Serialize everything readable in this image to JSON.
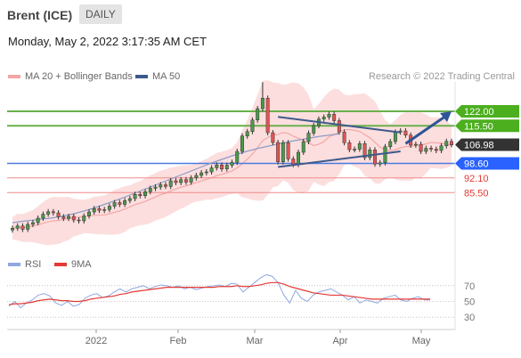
{
  "header": {
    "title": "Brent (ICE)",
    "period": "DAILY"
  },
  "datetime": "Monday, May 2, 2022 3:17:35 AM CET",
  "legend": [
    {
      "label": "MA 20 + Bollinger Bands",
      "color": "#f4a6a6"
    },
    {
      "label": "MA 50",
      "color": "#3d5a8c"
    }
  ],
  "copyright": "Research © 2022 Trading Central",
  "rsi_legend": [
    {
      "label": "RSI",
      "color": "#8fa8e0"
    },
    {
      "label": "9MA",
      "color": "#e53935"
    }
  ],
  "colors": {
    "up": "#4a9a4a",
    "down": "#e05555",
    "neutral_candle": "#222222",
    "resistance": "#6ab04c",
    "support": "#4b7be0",
    "red_level": "#f08a8a",
    "price_tag": "#333333"
  },
  "chart_data": [
    {
      "type": "candlestick",
      "title": "Brent (ICE)",
      "x_ticks": [
        "2022",
        "Feb",
        "Mar",
        "Apr",
        "May"
      ],
      "levels": [
        {
          "value": 122.0,
          "label": "122.00",
          "style": "resistance"
        },
        {
          "value": 115.5,
          "label": "115.50",
          "style": "resistance"
        },
        {
          "value": 106.98,
          "label": "106.98",
          "style": "last_price"
        },
        {
          "value": 98.6,
          "label": "98.60",
          "style": "support"
        },
        {
          "value": 92.1,
          "label": "92.10",
          "style": "minor"
        },
        {
          "value": 85.5,
          "label": "85.50",
          "style": "minor"
        }
      ],
      "y_range": [
        60,
        132
      ],
      "close_series": [
        69.5,
        70.5,
        69.0,
        71.2,
        72.0,
        74.0,
        75.8,
        76.9,
        76.4,
        74.6,
        73.9,
        74.8,
        73.2,
        72.8,
        75.0,
        76.8,
        78.3,
        77.5,
        77.9,
        79.4,
        81.0,
        80.2,
        81.9,
        82.8,
        84.7,
        84.1,
        85.9,
        87.4,
        88.0,
        89.0,
        88.3,
        90.8,
        90.0,
        91.3,
        90.2,
        92.1,
        93.2,
        94.4,
        94.8,
        96.6,
        97.9,
        96.1,
        97.8,
        99.1,
        104.0,
        110.9,
        112.9,
        118.1,
        123.2,
        127.9,
        112.4,
        108.0,
        99.3,
        107.9,
        100.6,
        98.1,
        103.6,
        108.4,
        112.2,
        115.6,
        118.5,
        119.4,
        120.7,
        117.8,
        112.7,
        107.9,
        104.8,
        105.0,
        107.5,
        101.2,
        104.7,
        98.3,
        98.9,
        106.1,
        108.4,
        112.7,
        113.2,
        111.3,
        106.8,
        107.2,
        104.0,
        105.4,
        105.0,
        104.4,
        106.5,
        108.5,
        106.98
      ],
      "ma50": [
        72.0,
        72.3,
        72.6,
        72.9,
        73.1,
        73.4,
        73.7,
        73.9,
        74.2,
        74.6,
        75.0,
        75.5,
        76.0,
        76.6,
        77.2,
        77.9,
        78.6,
        79.4,
        80.2,
        81.0,
        81.8,
        82.6,
        83.5,
        84.4,
        85.3,
        86.2,
        87.1,
        88.0,
        88.9,
        89.8,
        90.7,
        91.6,
        92.5,
        93.4,
        94.3,
        95.2,
        96.1,
        97.0,
        97.9,
        98.8,
        99.6,
        100.4,
        101.2,
        102.0,
        102.7,
        103.4,
        104.1,
        104.7,
        105.3,
        105.8,
        106.3,
        106.8,
        107.3,
        107.8,
        108.3,
        108.7,
        109.1,
        109.5,
        109.9,
        110.3,
        110.7,
        111.0,
        111.3,
        111.6,
        111.9
      ],
      "ma50_start_index": 0,
      "trendlines": [
        {
          "from": [
            52,
            119.5
          ],
          "to": [
            76,
            112.5
          ]
        },
        {
          "from": [
            52,
            97.0
          ],
          "to": [
            76,
            104.0
          ]
        }
      ],
      "projection_arrow": {
        "from": [
          77,
          107.5
        ],
        "to": [
          82,
          122.0
        ]
      }
    },
    {
      "type": "line",
      "title": "RSI",
      "y_ticks": [
        70,
        50,
        30
      ],
      "y_range": [
        20,
        80
      ],
      "series": [
        {
          "name": "RSI",
          "values": [
            44,
            50,
            42,
            48,
            52,
            58,
            60,
            57,
            48,
            45,
            50,
            44,
            46,
            54,
            58,
            60,
            55,
            57,
            62,
            66,
            62,
            66,
            68,
            70,
            66,
            69,
            71,
            70,
            68,
            70,
            66,
            68,
            65,
            67,
            69,
            70,
            71,
            69,
            73,
            72,
            62,
            68,
            74,
            80,
            84,
            82,
            74,
            58,
            48,
            64,
            54,
            50,
            58,
            62,
            64,
            66,
            62,
            58,
            52,
            56,
            48,
            52,
            50,
            48,
            54,
            56,
            58,
            52,
            50,
            54,
            56,
            52,
            52
          ]
        },
        {
          "name": "9MA",
          "values": [
            46,
            47,
            47,
            48,
            49,
            51,
            52,
            53,
            52,
            51,
            51,
            50,
            50,
            51,
            53,
            54,
            55,
            56,
            57,
            59,
            60,
            62,
            63,
            64,
            65,
            66,
            67,
            68,
            68,
            68,
            68,
            68,
            68,
            68,
            68,
            68,
            69,
            69,
            69,
            70,
            69,
            69,
            70,
            71,
            73,
            74,
            74,
            72,
            69,
            67,
            65,
            63,
            61,
            60,
            59,
            58,
            58,
            58,
            57,
            56,
            55,
            54,
            53,
            53,
            53,
            53,
            53,
            53,
            53,
            53,
            53,
            53,
            53
          ]
        }
      ]
    }
  ]
}
